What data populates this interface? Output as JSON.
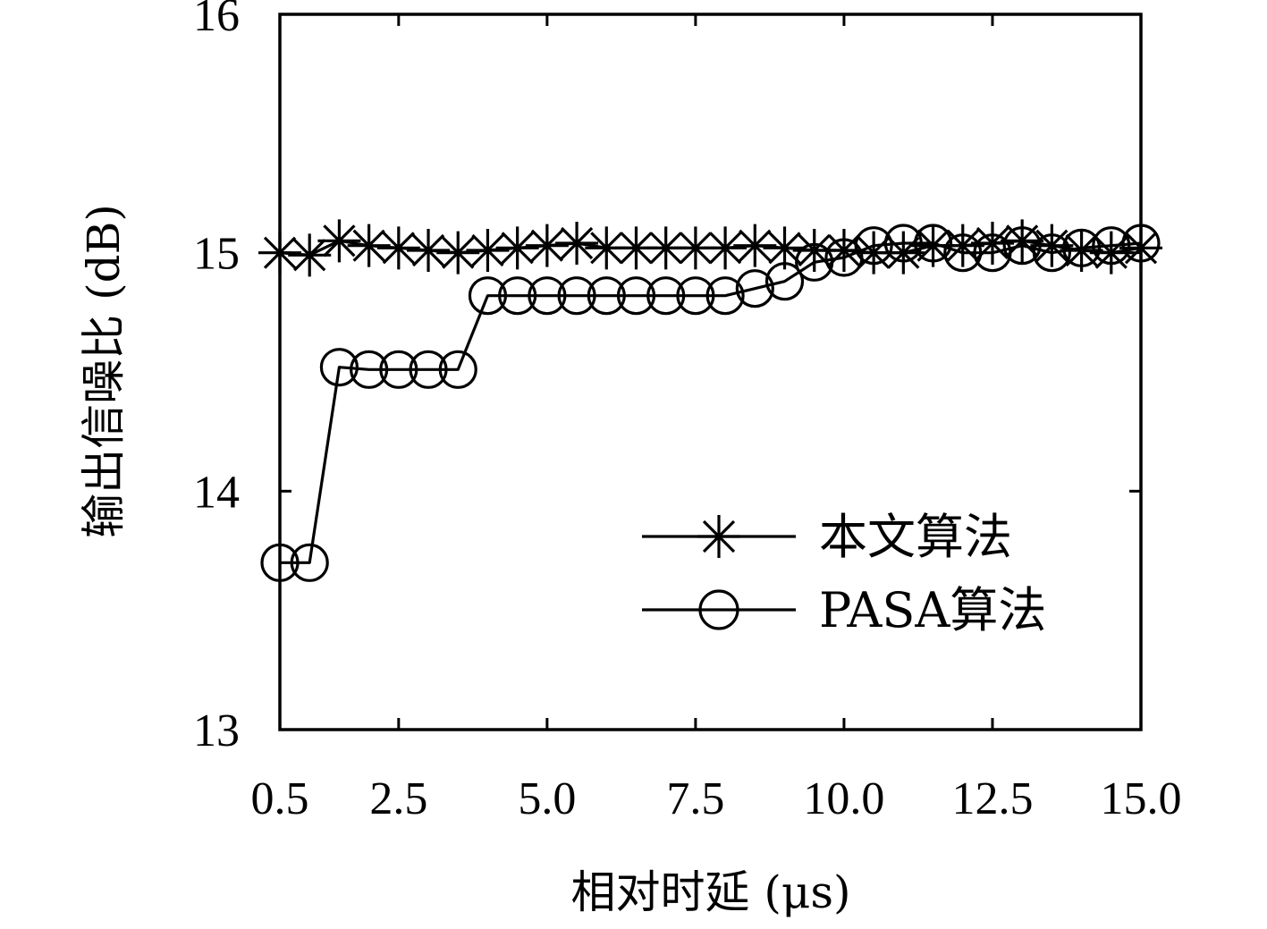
{
  "chart_data": {
    "type": "line",
    "xlabel": "相对时延 (μs)",
    "ylabel": "输出信噪比 (dB)",
    "xlim": [
      0.5,
      15.0
    ],
    "ylim": [
      13,
      16
    ],
    "x_ticks": [
      "0.5",
      "2.5",
      "5.0",
      "7.5",
      "10.0",
      "12.5",
      "15.0"
    ],
    "x_tick_values": [
      0.5,
      2.5,
      5.0,
      7.5,
      10.0,
      12.5,
      15.0
    ],
    "y_ticks": [
      "13",
      "14",
      "15",
      "16"
    ],
    "y_tick_values": [
      13,
      14,
      15,
      16
    ],
    "grid": false,
    "legend_position": "lower-right",
    "x": [
      0.5,
      1.0,
      1.5,
      2.0,
      2.5,
      3.0,
      3.5,
      4.0,
      4.5,
      5.0,
      5.5,
      6.0,
      6.5,
      7.0,
      7.5,
      8.0,
      8.5,
      9.0,
      9.5,
      10.0,
      10.5,
      11.0,
      11.5,
      12.0,
      12.5,
      13.0,
      13.5,
      14.0,
      14.5,
      15.0
    ],
    "series": [
      {
        "name": "本文算法",
        "marker": "asterisk",
        "color": "#000000",
        "values": [
          15.0,
          14.99,
          15.05,
          15.03,
          15.02,
          15.01,
          15.0,
          15.01,
          15.02,
          15.03,
          15.04,
          15.02,
          15.02,
          15.02,
          15.02,
          15.02,
          15.03,
          15.02,
          15.01,
          15.01,
          15.0,
          15.0,
          15.03,
          15.03,
          15.04,
          15.05,
          15.03,
          15.01,
          15.0,
          15.02
        ]
      },
      {
        "name": "PASA算法",
        "marker": "circle",
        "color": "#000000",
        "values": [
          13.7,
          13.7,
          14.52,
          14.51,
          14.51,
          14.51,
          14.51,
          14.82,
          14.82,
          14.82,
          14.82,
          14.82,
          14.82,
          14.82,
          14.82,
          14.82,
          14.85,
          14.88,
          14.96,
          14.98,
          15.03,
          15.04,
          15.04,
          15.0,
          15.0,
          15.03,
          15.0,
          15.02,
          15.03,
          15.04
        ]
      }
    ]
  }
}
